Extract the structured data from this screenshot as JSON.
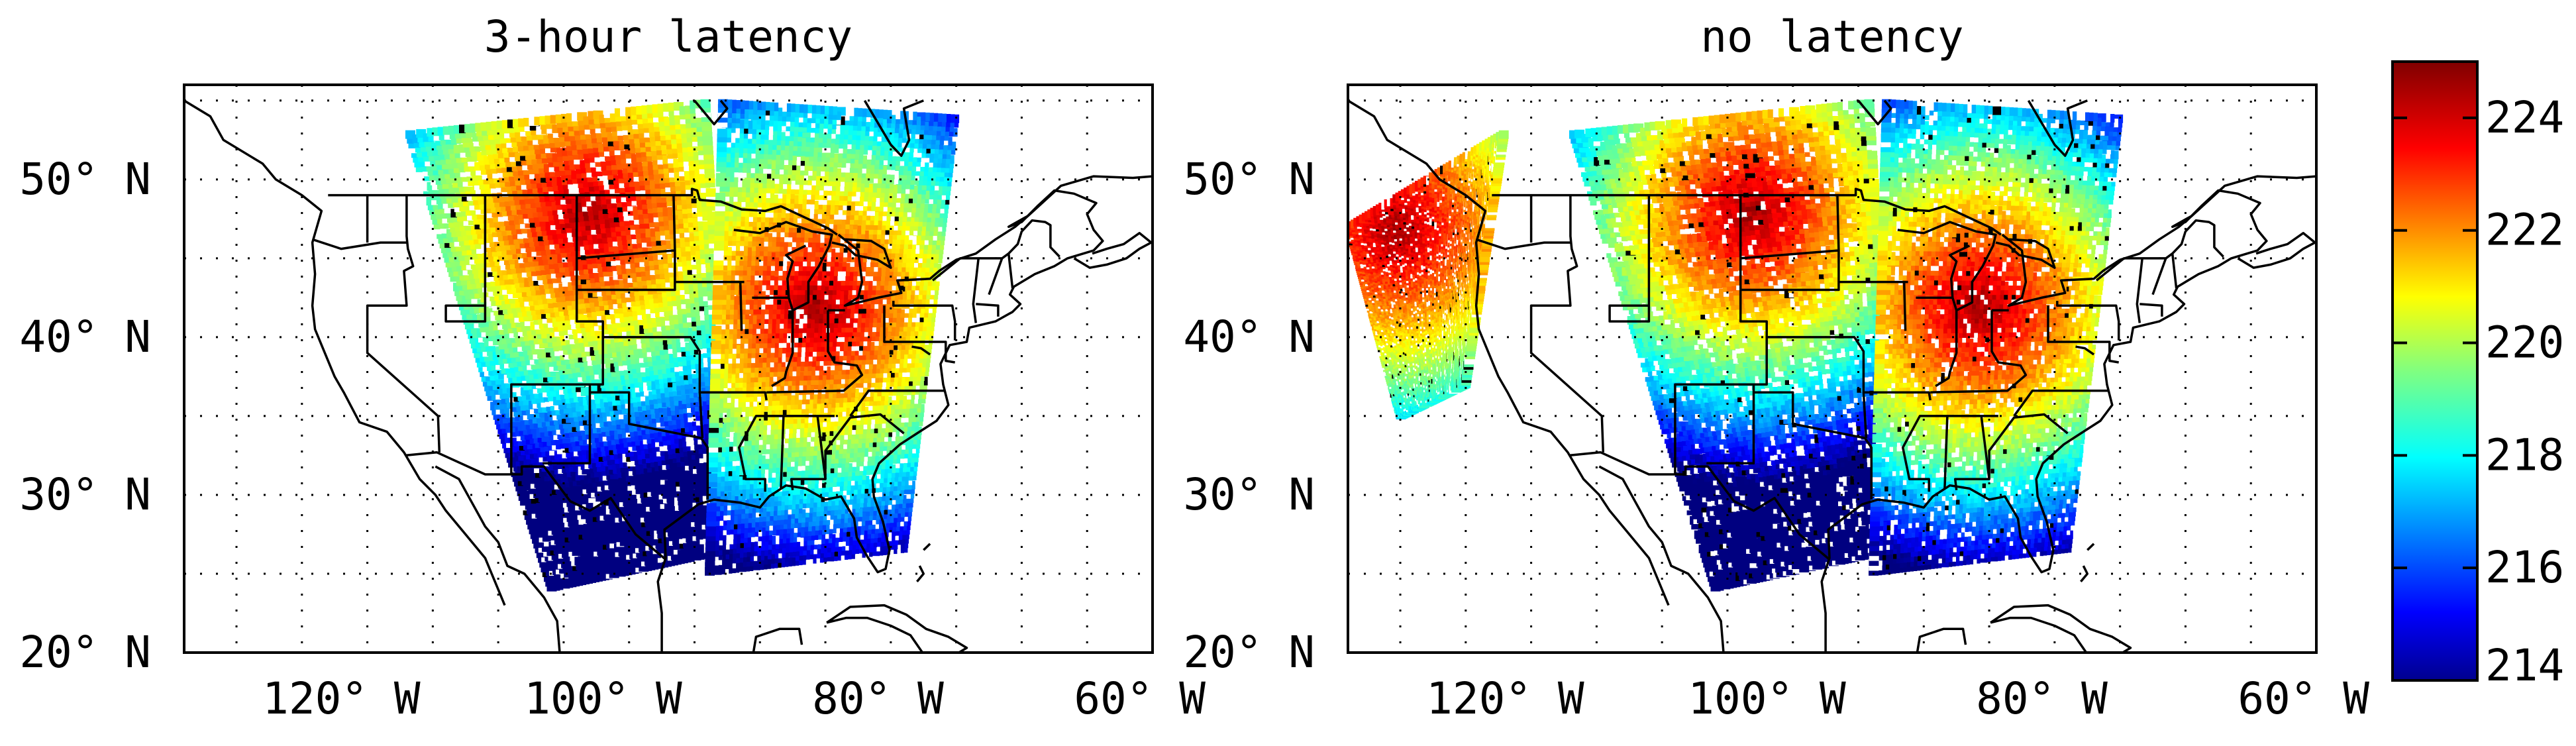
{
  "figure": {
    "panels": [
      {
        "title": "3-hour latency"
      },
      {
        "title": "no latency"
      }
    ],
    "colorbar": {
      "vmin": 214,
      "vmax": 225,
      "ticks": [
        "214",
        "216",
        "218",
        "220",
        "222",
        "224"
      ],
      "colormap": "jet"
    }
  },
  "chart_data": [
    {
      "type": "heatmap",
      "title": "3-hour latency",
      "projection": "map",
      "xlim": [
        -134,
        -60
      ],
      "ylim": [
        20,
        56
      ],
      "x_ticks": [
        -120,
        -100,
        -80,
        -60
      ],
      "y_ticks": [
        20,
        30,
        40,
        50
      ],
      "x_tick_labels": [
        "120° W",
        "100° W",
        "80° W",
        "60° W"
      ],
      "y_tick_labels": [
        "20° N",
        "30° N",
        "40° N",
        "50° N"
      ],
      "grid": "dotted",
      "swaths": [
        {
          "corners": [
            [
              -106,
              24
            ],
            [
              -92,
              26.5
            ],
            [
              -94,
              55
            ],
            [
              -117,
              53
            ]
          ],
          "max_center": [
            -103,
            48
          ]
        },
        {
          "corners": [
            [
              -79,
              26.5
            ],
            [
              -94,
              25
            ],
            [
              -93,
              55
            ],
            [
              -75,
              54
            ]
          ],
          "max_center": [
            -86,
            42
          ]
        }
      ]
    },
    {
      "type": "heatmap",
      "title": "no latency",
      "projection": "map",
      "xlim": [
        -134,
        -60
      ],
      "ylim": [
        20,
        56
      ],
      "x_ticks": [
        -120,
        -100,
        -80,
        -60
      ],
      "y_ticks": [
        20,
        30,
        40,
        50
      ],
      "x_tick_labels": [
        "120° W",
        "100° W",
        "80° W",
        "60° W"
      ],
      "y_tick_labels": [
        "20° N",
        "30° N",
        "40° N",
        "50° N"
      ],
      "grid": "dotted",
      "swaths": [
        {
          "corners": [
            [
              -130,
              35
            ],
            [
              -125,
              37
            ],
            [
              -122,
              53
            ],
            [
              -134,
              47
            ]
          ],
          "max_center": [
            -130,
            47
          ]
        },
        {
          "corners": [
            [
              -106,
              24
            ],
            [
              -92,
              26.5
            ],
            [
              -94,
              55
            ],
            [
              -117,
              53
            ]
          ],
          "max_center": [
            -103,
            48
          ]
        },
        {
          "corners": [
            [
              -79,
              26.5
            ],
            [
              -94,
              25
            ],
            [
              -93,
              55
            ],
            [
              -75,
              54
            ]
          ],
          "max_center": [
            -86,
            42
          ]
        }
      ]
    }
  ]
}
